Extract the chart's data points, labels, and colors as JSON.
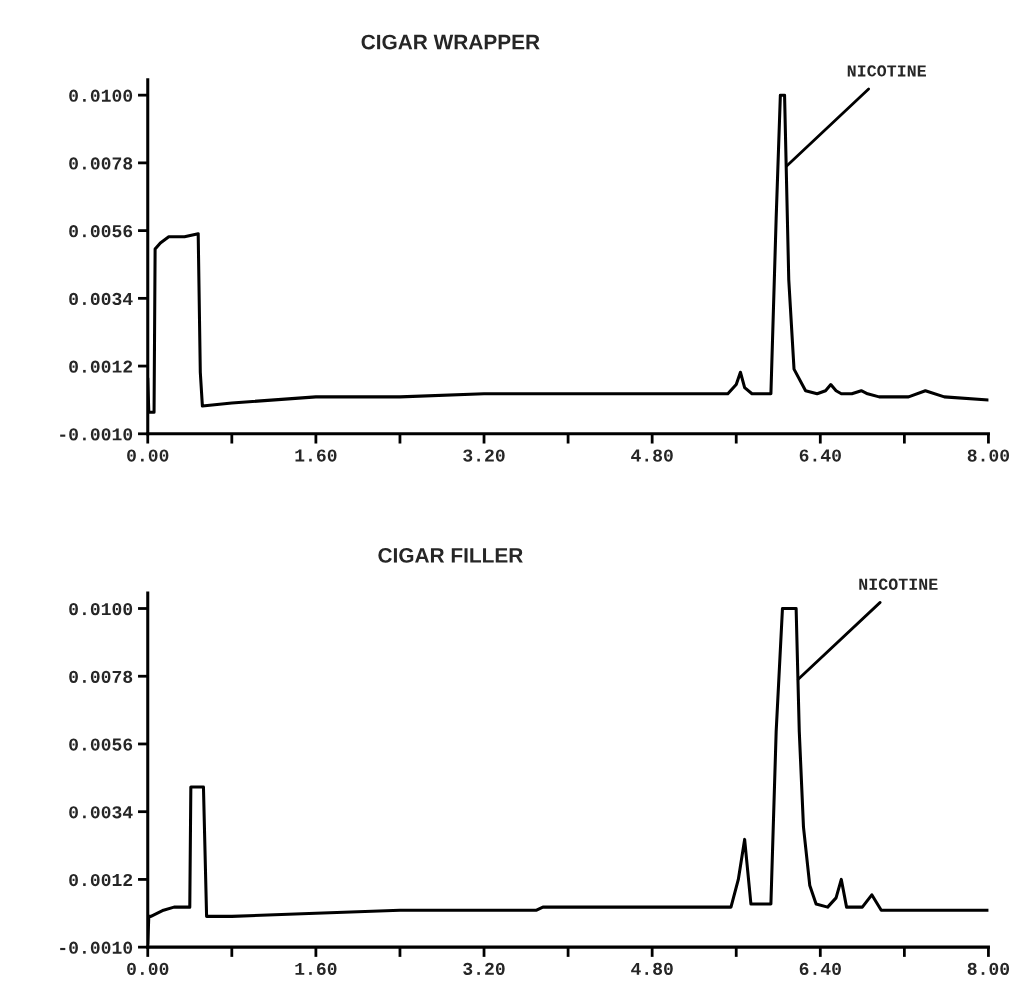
{
  "chart_data": [
    {
      "type": "line",
      "title": "CIGAR WRAPPER",
      "x": [
        0,
        0.01,
        0.06,
        0.07,
        0.12,
        0.2,
        0.35,
        0.48,
        0.5,
        0.52,
        0.8,
        1.6,
        2.4,
        3.2,
        4.0,
        4.8,
        5.52,
        5.6,
        5.64,
        5.68,
        5.75,
        5.93,
        5.98,
        6.02,
        6.06,
        6.1,
        6.15,
        6.26,
        6.37,
        6.45,
        6.5,
        6.55,
        6.6,
        6.7,
        6.79,
        6.85,
        6.96,
        7.24,
        7.4,
        7.58,
        8.0
      ],
      "series": [
        {
          "color": "#000000",
          "values": [
            0.0008,
            -0.0003,
            -0.0003,
            0.005,
            0.0052,
            0.0054,
            0.0054,
            0.0055,
            0.001,
            -0.0001,
            0.0,
            0.0002,
            0.0002,
            0.0003,
            0.0003,
            0.0003,
            0.0003,
            0.0006,
            0.001,
            0.0005,
            0.0003,
            0.0003,
            0.006,
            0.01,
            0.01,
            0.004,
            0.0011,
            0.0004,
            0.0003,
            0.0004,
            0.0006,
            0.0004,
            0.0003,
            0.0003,
            0.0004,
            0.0003,
            0.0002,
            0.0002,
            0.0004,
            0.0002,
            0.0001
          ]
        }
      ],
      "xlim": [
        0,
        8
      ],
      "ylim": [
        -0.001,
        0.0105
      ],
      "xticks": [
        {
          "value": 0,
          "label": "0.00"
        },
        {
          "value": 0.8,
          "label": null
        },
        {
          "value": 1.6,
          "label": "1.60"
        },
        {
          "value": 2.4,
          "label": null
        },
        {
          "value": 3.2,
          "label": "3.20"
        },
        {
          "value": 4.0,
          "label": null
        },
        {
          "value": 4.8,
          "label": "4.80"
        },
        {
          "value": 5.6,
          "label": null
        },
        {
          "value": 6.4,
          "label": "6.40"
        },
        {
          "value": 7.2,
          "label": null
        },
        {
          "value": 8.0,
          "label": "8.00"
        }
      ],
      "yticks": [
        {
          "value": -0.001,
          "label": "-0.0010"
        },
        {
          "value": 0.0012,
          "label": "0.0012"
        },
        {
          "value": 0.0034,
          "label": "0.0034"
        },
        {
          "value": 0.0056,
          "label": "0.0056"
        },
        {
          "value": 0.0078,
          "label": "0.0078"
        },
        {
          "value": 0.01,
          "label": "0.0100"
        }
      ],
      "annotations": [
        {
          "text": "NICOTINE",
          "x": 6.08,
          "y": 0.0077
        }
      ],
      "grid": false,
      "legend": false,
      "marker": "none",
      "line_style": "solid"
    },
    {
      "type": "line",
      "title": "CIGAR FILLER",
      "x": [
        0,
        0.01,
        0.03,
        0.15,
        0.25,
        0.4,
        0.41,
        0.45,
        0.53,
        0.56,
        0.8,
        1.6,
        2.4,
        3.2,
        3.7,
        3.76,
        4.0,
        4.8,
        5.55,
        5.62,
        5.68,
        5.74,
        5.8,
        5.85,
        5.93,
        5.98,
        6.04,
        6.17,
        6.2,
        6.24,
        6.3,
        6.36,
        6.47,
        6.55,
        6.6,
        6.65,
        6.72,
        6.8,
        6.89,
        6.98,
        7.4,
        8.0
      ],
      "series": [
        {
          "color": "#000000",
          "values": [
            -0.0009,
            0.0,
            0.0,
            0.0002,
            0.0003,
            0.0003,
            0.0042,
            0.0042,
            0.0042,
            0.0,
            0.0,
            0.0001,
            0.0002,
            0.0002,
            0.0002,
            0.0003,
            0.0003,
            0.0003,
            0.0003,
            0.0012,
            0.0025,
            0.0004,
            0.0004,
            0.0004,
            0.0004,
            0.006,
            0.01,
            0.01,
            0.006,
            0.0029,
            0.001,
            0.0004,
            0.0003,
            0.0006,
            0.0012,
            0.0003,
            0.0003,
            0.0003,
            0.0007,
            0.0002,
            0.0002,
            0.0002
          ]
        }
      ],
      "xlim": [
        0,
        8
      ],
      "ylim": [
        -0.001,
        0.0105
      ],
      "xticks": [
        {
          "value": 0,
          "label": "0.00"
        },
        {
          "value": 0.8,
          "label": null
        },
        {
          "value": 1.6,
          "label": "1.60"
        },
        {
          "value": 2.4,
          "label": null
        },
        {
          "value": 3.2,
          "label": "3.20"
        },
        {
          "value": 4.0,
          "label": null
        },
        {
          "value": 4.8,
          "label": "4.80"
        },
        {
          "value": 5.6,
          "label": null
        },
        {
          "value": 6.4,
          "label": "6.40"
        },
        {
          "value": 7.2,
          "label": null
        },
        {
          "value": 8.0,
          "label": "8.00"
        }
      ],
      "yticks": [
        {
          "value": -0.001,
          "label": "-0.0010"
        },
        {
          "value": 0.0012,
          "label": "0.0012"
        },
        {
          "value": 0.0034,
          "label": "0.0034"
        },
        {
          "value": 0.0056,
          "label": "0.0056"
        },
        {
          "value": 0.0078,
          "label": "0.0078"
        },
        {
          "value": 0.01,
          "label": "0.0100"
        }
      ],
      "annotations": [
        {
          "text": "NICOTINE",
          "x": 6.19,
          "y": 0.0077
        }
      ],
      "grid": false,
      "legend": false,
      "marker": "none",
      "line_style": "solid"
    }
  ]
}
